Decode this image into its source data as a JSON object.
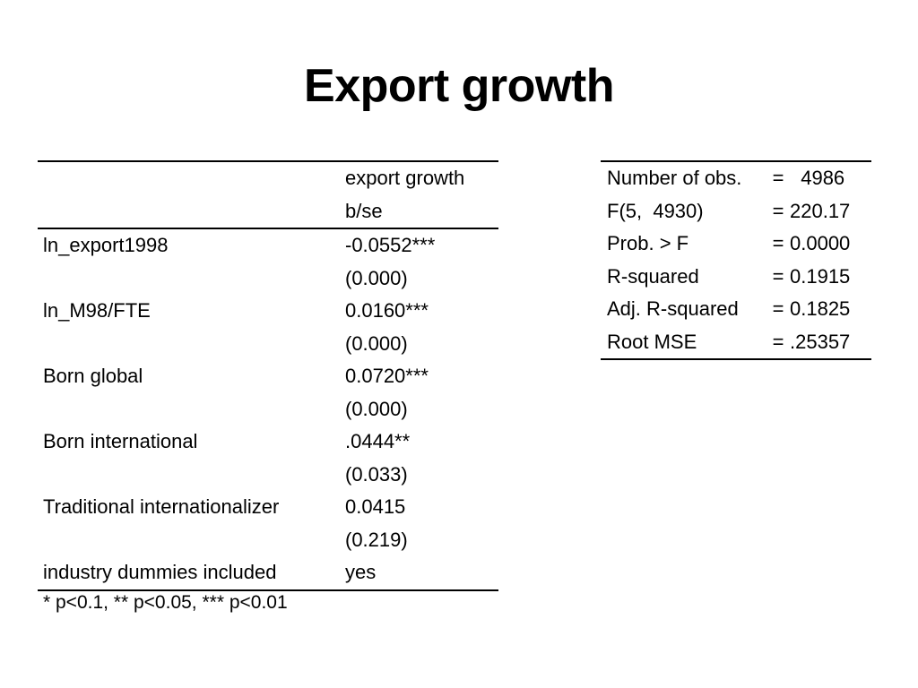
{
  "slide": {
    "title": "Export growth"
  },
  "regression_table": {
    "header": {
      "column_title": "export growth",
      "column_subtitle": "b/se"
    },
    "rows": [
      {
        "label": "ln_export1998",
        "coef": "-0.0552***",
        "se": "(0.000)"
      },
      {
        "label": "ln_M98/FTE",
        "coef": "0.0160***",
        "se": "(0.000)"
      },
      {
        "label": "Born global",
        "coef": "0.0720***",
        "se": "(0.000)"
      },
      {
        "label": "Born international",
        "coef": ".0444**",
        "se": "(0.033)"
      },
      {
        "label": "Traditional internationalizer",
        "coef": "0.0415",
        "se": "(0.219)"
      }
    ],
    "dummies": {
      "label": "industry dummies included",
      "value": "yes"
    },
    "footnote": "* p<0.1, ** p<0.05, *** p<0.01"
  },
  "model_stats": [
    {
      "name": "Number of obs.",
      "eq": "=",
      "value": "  4986"
    },
    {
      "name": "F(5,  4930)",
      "eq": "=",
      "value": "220.17"
    },
    {
      "name": "Prob. > F",
      "eq": "=",
      "value": "0.0000"
    },
    {
      "name": "R-squared",
      "eq": "=",
      "value": "0.1915"
    },
    {
      "name": "Adj. R-squared",
      "eq": "=",
      "value": "0.1825"
    },
    {
      "name": "Root MSE",
      "eq": "=",
      "value": ".25357"
    }
  ]
}
